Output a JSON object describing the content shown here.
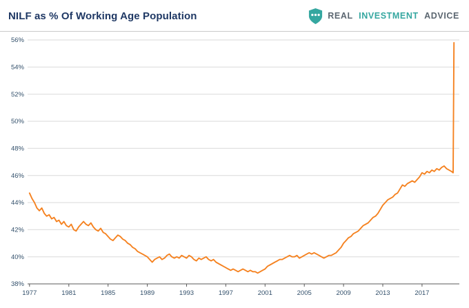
{
  "header": {
    "title": "NILF as % Of Working Age Population",
    "logo": {
      "part1": "REAL",
      "part2": "INVESTMENT",
      "part3": "ADVICE",
      "shield_color": "#35a7a0"
    }
  },
  "colors": {
    "line_orange": "#f58220",
    "title_navy": "#1f3864",
    "brand_teal": "#35a7a0",
    "brand_gray": "#5b6670"
  },
  "chart_data": {
    "type": "line",
    "title": "NILF as % Of Working Age Population",
    "xlabel": "",
    "ylabel": "",
    "xlim": [
      1976.8,
      2020.8
    ],
    "ylim": [
      38,
      56
    ],
    "y_ticks": [
      38,
      40,
      42,
      44,
      46,
      48,
      50,
      52,
      54,
      56
    ],
    "y_tick_suffix": "%",
    "x_ticks": [
      1977,
      1981,
      1985,
      1989,
      1993,
      1997,
      2001,
      2005,
      2009,
      2013,
      2017
    ],
    "grid": "horizontal",
    "grid_color": "#d9d9d9",
    "axis_color": "#595959",
    "tick_color": "#33506b",
    "legend": "none",
    "series": [
      {
        "name": "NILF as % of working age population",
        "color": "#f58220",
        "points": [
          [
            1977.0,
            44.7
          ],
          [
            1977.25,
            44.3
          ],
          [
            1977.5,
            44.0
          ],
          [
            1977.75,
            43.6
          ],
          [
            1978.0,
            43.4
          ],
          [
            1978.25,
            43.6
          ],
          [
            1978.5,
            43.2
          ],
          [
            1978.75,
            43.0
          ],
          [
            1979.0,
            43.1
          ],
          [
            1979.25,
            42.8
          ],
          [
            1979.5,
            42.9
          ],
          [
            1979.75,
            42.6
          ],
          [
            1980.0,
            42.7
          ],
          [
            1980.25,
            42.4
          ],
          [
            1980.5,
            42.6
          ],
          [
            1980.75,
            42.3
          ],
          [
            1981.0,
            42.2
          ],
          [
            1981.25,
            42.4
          ],
          [
            1981.5,
            42.0
          ],
          [
            1981.75,
            41.9
          ],
          [
            1982.0,
            42.2
          ],
          [
            1982.25,
            42.4
          ],
          [
            1982.5,
            42.6
          ],
          [
            1982.75,
            42.4
          ],
          [
            1983.0,
            42.3
          ],
          [
            1983.25,
            42.5
          ],
          [
            1983.5,
            42.2
          ],
          [
            1983.75,
            42.0
          ],
          [
            1984.0,
            41.9
          ],
          [
            1984.25,
            42.1
          ],
          [
            1984.5,
            41.8
          ],
          [
            1984.75,
            41.7
          ],
          [
            1985.0,
            41.5
          ],
          [
            1985.25,
            41.3
          ],
          [
            1985.5,
            41.2
          ],
          [
            1985.75,
            41.4
          ],
          [
            1986.0,
            41.6
          ],
          [
            1986.25,
            41.5
          ],
          [
            1986.5,
            41.3
          ],
          [
            1986.75,
            41.2
          ],
          [
            1987.0,
            41.0
          ],
          [
            1987.25,
            40.9
          ],
          [
            1987.5,
            40.7
          ],
          [
            1987.75,
            40.6
          ],
          [
            1988.0,
            40.4
          ],
          [
            1988.25,
            40.3
          ],
          [
            1988.5,
            40.2
          ],
          [
            1988.75,
            40.1
          ],
          [
            1989.0,
            40.0
          ],
          [
            1989.25,
            39.8
          ],
          [
            1989.5,
            39.6
          ],
          [
            1989.75,
            39.8
          ],
          [
            1990.0,
            39.9
          ],
          [
            1990.25,
            40.0
          ],
          [
            1990.5,
            39.8
          ],
          [
            1990.75,
            39.9
          ],
          [
            1991.0,
            40.1
          ],
          [
            1991.25,
            40.2
          ],
          [
            1991.5,
            40.0
          ],
          [
            1991.75,
            39.9
          ],
          [
            1992.0,
            40.0
          ],
          [
            1992.25,
            39.9
          ],
          [
            1992.5,
            40.1
          ],
          [
            1992.75,
            40.0
          ],
          [
            1993.0,
            39.9
          ],
          [
            1993.25,
            40.1
          ],
          [
            1993.5,
            40.0
          ],
          [
            1993.75,
            39.8
          ],
          [
            1994.0,
            39.7
          ],
          [
            1994.25,
            39.9
          ],
          [
            1994.5,
            39.8
          ],
          [
            1994.75,
            39.9
          ],
          [
            1995.0,
            40.0
          ],
          [
            1995.25,
            39.8
          ],
          [
            1995.5,
            39.7
          ],
          [
            1995.75,
            39.8
          ],
          [
            1996.0,
            39.6
          ],
          [
            1996.25,
            39.5
          ],
          [
            1996.5,
            39.4
          ],
          [
            1996.75,
            39.3
          ],
          [
            1997.0,
            39.2
          ],
          [
            1997.25,
            39.1
          ],
          [
            1997.5,
            39.0
          ],
          [
            1997.75,
            39.1
          ],
          [
            1998.0,
            39.0
          ],
          [
            1998.25,
            38.9
          ],
          [
            1998.5,
            39.0
          ],
          [
            1998.75,
            39.1
          ],
          [
            1999.0,
            39.0
          ],
          [
            1999.25,
            38.9
          ],
          [
            1999.5,
            39.0
          ],
          [
            1999.75,
            38.9
          ],
          [
            2000.0,
            38.9
          ],
          [
            2000.25,
            38.8
          ],
          [
            2000.5,
            38.9
          ],
          [
            2000.75,
            39.0
          ],
          [
            2001.0,
            39.1
          ],
          [
            2001.25,
            39.3
          ],
          [
            2001.5,
            39.4
          ],
          [
            2001.75,
            39.5
          ],
          [
            2002.0,
            39.6
          ],
          [
            2002.25,
            39.7
          ],
          [
            2002.5,
            39.8
          ],
          [
            2002.75,
            39.8
          ],
          [
            2003.0,
            39.9
          ],
          [
            2003.25,
            40.0
          ],
          [
            2003.5,
            40.1
          ],
          [
            2003.75,
            40.0
          ],
          [
            2004.0,
            40.0
          ],
          [
            2004.25,
            40.1
          ],
          [
            2004.5,
            39.9
          ],
          [
            2004.75,
            40.0
          ],
          [
            2005.0,
            40.1
          ],
          [
            2005.25,
            40.2
          ],
          [
            2005.5,
            40.3
          ],
          [
            2005.75,
            40.2
          ],
          [
            2006.0,
            40.3
          ],
          [
            2006.25,
            40.2
          ],
          [
            2006.5,
            40.1
          ],
          [
            2006.75,
            40.0
          ],
          [
            2007.0,
            39.9
          ],
          [
            2007.25,
            40.0
          ],
          [
            2007.5,
            40.1
          ],
          [
            2007.75,
            40.1
          ],
          [
            2008.0,
            40.2
          ],
          [
            2008.25,
            40.3
          ],
          [
            2008.5,
            40.5
          ],
          [
            2008.75,
            40.7
          ],
          [
            2009.0,
            41.0
          ],
          [
            2009.25,
            41.2
          ],
          [
            2009.5,
            41.4
          ],
          [
            2009.75,
            41.5
          ],
          [
            2010.0,
            41.7
          ],
          [
            2010.25,
            41.8
          ],
          [
            2010.5,
            41.9
          ],
          [
            2010.75,
            42.1
          ],
          [
            2011.0,
            42.3
          ],
          [
            2011.25,
            42.4
          ],
          [
            2011.5,
            42.5
          ],
          [
            2011.75,
            42.7
          ],
          [
            2012.0,
            42.9
          ],
          [
            2012.25,
            43.0
          ],
          [
            2012.5,
            43.2
          ],
          [
            2012.75,
            43.5
          ],
          [
            2013.0,
            43.8
          ],
          [
            2013.25,
            44.0
          ],
          [
            2013.5,
            44.2
          ],
          [
            2013.75,
            44.3
          ],
          [
            2014.0,
            44.4
          ],
          [
            2014.25,
            44.6
          ],
          [
            2014.5,
            44.7
          ],
          [
            2014.75,
            45.0
          ],
          [
            2015.0,
            45.3
          ],
          [
            2015.25,
            45.2
          ],
          [
            2015.5,
            45.4
          ],
          [
            2015.75,
            45.5
          ],
          [
            2016.0,
            45.6
          ],
          [
            2016.25,
            45.5
          ],
          [
            2016.5,
            45.7
          ],
          [
            2016.75,
            45.9
          ],
          [
            2017.0,
            46.2
          ],
          [
            2017.25,
            46.1
          ],
          [
            2017.5,
            46.3
          ],
          [
            2017.75,
            46.2
          ],
          [
            2018.0,
            46.4
          ],
          [
            2018.25,
            46.3
          ],
          [
            2018.5,
            46.5
          ],
          [
            2018.75,
            46.4
          ],
          [
            2019.0,
            46.6
          ],
          [
            2019.25,
            46.7
          ],
          [
            2019.5,
            46.5
          ],
          [
            2019.75,
            46.4
          ],
          [
            2020.0,
            46.3
          ],
          [
            2020.17,
            46.2
          ],
          [
            2020.25,
            55.8
          ]
        ]
      }
    ]
  }
}
